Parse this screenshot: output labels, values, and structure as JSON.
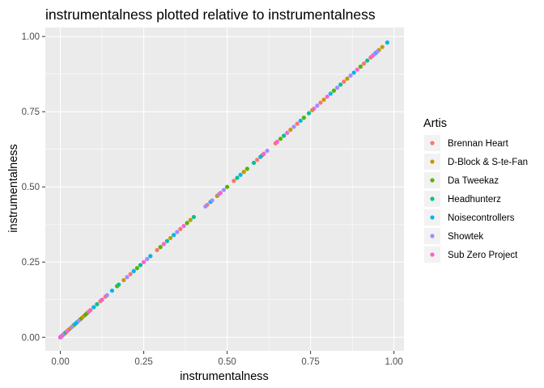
{
  "chart_data": {
    "type": "scatter",
    "title": "instrumentalness plotted relative to instrumentalness",
    "xlabel": "instrumentalness",
    "ylabel": "instrumentalness",
    "xlim": [
      -0.045,
      1.03
    ],
    "ylim": [
      -0.045,
      1.03
    ],
    "x_ticks": [
      0,
      0.25,
      0.5,
      0.75,
      1
    ],
    "x_tick_labels": [
      "0.00",
      "0.25",
      "0.50",
      "0.75",
      "1.00"
    ],
    "y_ticks": [
      0,
      0.25,
      0.5,
      0.75,
      1
    ],
    "y_tick_labels": [
      "0.00",
      "0.25",
      "0.50",
      "0.75",
      "1.00"
    ],
    "grid": true,
    "legend": {
      "title": "Artis",
      "placement": "right"
    },
    "series": [
      {
        "name": "Brennan Heart",
        "color": "#F8766D",
        "x": [
          0.0,
          0.002,
          0.005,
          0.012,
          0.03,
          0.07,
          0.09,
          0.12,
          0.135,
          0.21,
          0.29,
          0.36,
          0.44,
          0.52,
          0.59,
          0.645,
          0.71,
          0.78,
          0.85,
          0.91,
          0.93
        ]
      },
      {
        "name": "D-Block & S-te-Fan",
        "color": "#C49A00",
        "x": [
          0.0,
          0.001,
          0.004,
          0.008,
          0.016,
          0.025,
          0.04,
          0.065,
          0.1,
          0.19,
          0.27,
          0.33,
          0.39,
          0.47,
          0.55,
          0.605,
          0.69,
          0.755,
          0.79,
          0.86,
          0.955,
          0.965
        ]
      },
      {
        "name": "Da Tweekaz",
        "color": "#53B400",
        "x": [
          0.0,
          0.003,
          0.015,
          0.04,
          0.06,
          0.075,
          0.08,
          0.17,
          0.23,
          0.3,
          0.38,
          0.5,
          0.56,
          0.66,
          0.73,
          0.82,
          0.9
        ]
      },
      {
        "name": "Headhunterz",
        "color": "#00C094",
        "x": [
          0.0,
          0.002,
          0.01,
          0.05,
          0.11,
          0.175,
          0.24,
          0.32,
          0.4,
          0.53,
          0.58,
          0.67,
          0.745,
          0.84,
          0.92
        ]
      },
      {
        "name": "Noisecontrollers",
        "color": "#00B6EB",
        "x": [
          0.0,
          0.006,
          0.02,
          0.045,
          0.1,
          0.155,
          0.22,
          0.27,
          0.34,
          0.45,
          0.54,
          0.6,
          0.72,
          0.81,
          0.88,
          0.945,
          0.98
        ]
      },
      {
        "name": "Showtek",
        "color": "#A58AFF",
        "x": [
          0.0,
          0.008,
          0.035,
          0.055,
          0.14,
          0.2,
          0.26,
          0.35,
          0.435,
          0.455,
          0.475,
          0.49,
          0.62,
          0.7,
          0.77,
          0.83,
          0.87,
          0.94,
          0.95
        ]
      },
      {
        "name": "Sub Zero Project",
        "color": "#FB61D7",
        "x": [
          0.0,
          0.004,
          0.02,
          0.085,
          0.125,
          0.25,
          0.31,
          0.37,
          0.48,
          0.61,
          0.65,
          0.68,
          0.76,
          0.8,
          0.89,
          0.935
        ]
      }
    ]
  }
}
